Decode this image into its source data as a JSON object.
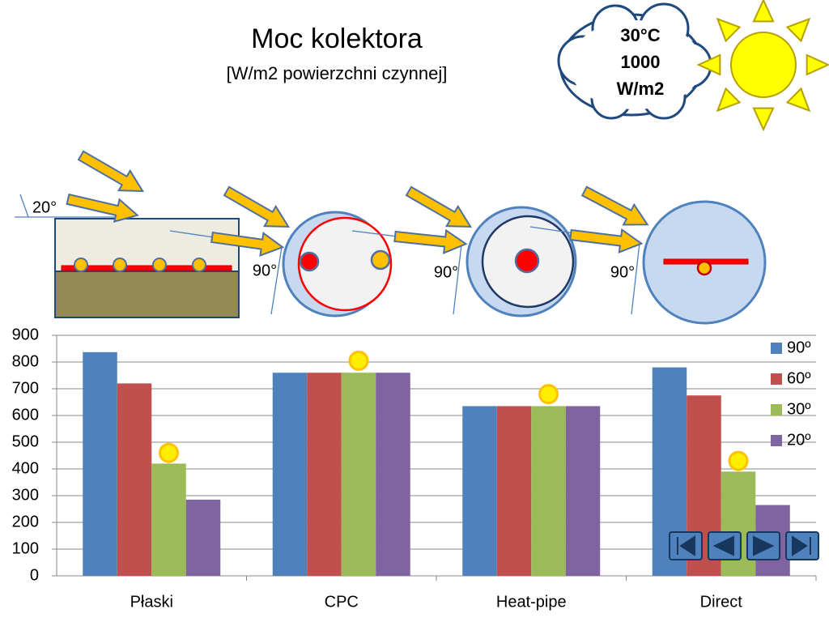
{
  "title": "Moc kolektora",
  "subtitle": "[W/m2 powierzchni czynnej]",
  "conditions": [
    "30°C",
    "1000",
    "W/m2"
  ],
  "diagram": {
    "angles": [
      "20°",
      "90°",
      "90°",
      "90°"
    ]
  },
  "chart_data": {
    "type": "bar",
    "categories": [
      "Płaski",
      "CPC",
      "Heat-pipe",
      "Direct"
    ],
    "series": [
      {
        "name": "90º",
        "color": "#4f81bd",
        "values": [
          837,
          760,
          635,
          780
        ]
      },
      {
        "name": "60º",
        "color": "#c0504d",
        "values": [
          720,
          760,
          635,
          675
        ]
      },
      {
        "name": "30º",
        "color": "#9bbb59",
        "values": [
          420,
          760,
          635,
          390
        ]
      },
      {
        "name": "20º",
        "color": "#8064a2",
        "values": [
          285,
          760,
          635,
          265
        ]
      }
    ],
    "markers": {
      "color": "#ffee00",
      "values": [
        460,
        805,
        680,
        430
      ]
    },
    "ylim": [
      0,
      900
    ],
    "yticks": [
      0,
      100,
      200,
      300,
      400,
      500,
      600,
      700,
      800,
      900
    ],
    "grid": true,
    "legend": "right"
  }
}
